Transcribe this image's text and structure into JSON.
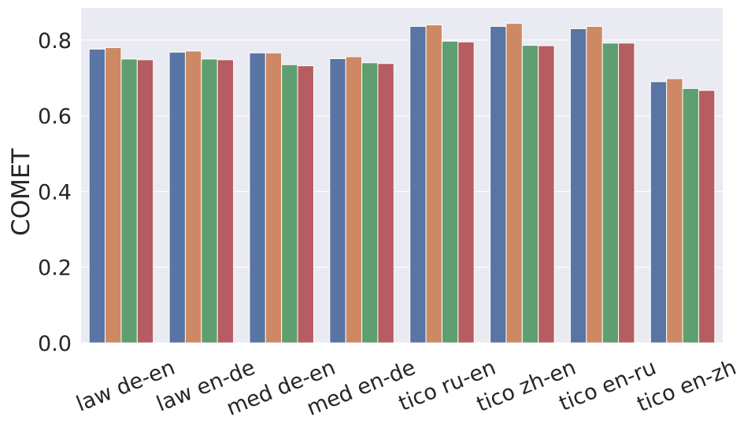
{
  "chart_data": {
    "type": "bar",
    "ylabel": "COMET",
    "xlabel": "",
    "ylim": [
      0,
      0.885
    ],
    "yticks": [
      "0.0",
      "0.2",
      "0.4",
      "0.6",
      "0.8"
    ],
    "grid": true,
    "categories": [
      "law de-en",
      "law en-de",
      "med de-en",
      "med en-de",
      "tico ru-en",
      "tico zh-en",
      "tico en-ru",
      "tico en-zh"
    ],
    "series": [
      {
        "color": "#5875a4",
        "values": [
          0.776,
          0.768,
          0.766,
          0.751,
          0.836,
          0.836,
          0.83,
          0.69
        ]
      },
      {
        "color": "#cc8963",
        "values": [
          0.78,
          0.771,
          0.766,
          0.756,
          0.84,
          0.844,
          0.836,
          0.698
        ]
      },
      {
        "color": "#5f9e6e",
        "values": [
          0.75,
          0.75,
          0.735,
          0.74,
          0.797,
          0.786,
          0.792,
          0.672
        ]
      },
      {
        "color": "#b55d60",
        "values": [
          0.748,
          0.748,
          0.732,
          0.738,
          0.795,
          0.785,
          0.792,
          0.667
        ]
      }
    ]
  }
}
